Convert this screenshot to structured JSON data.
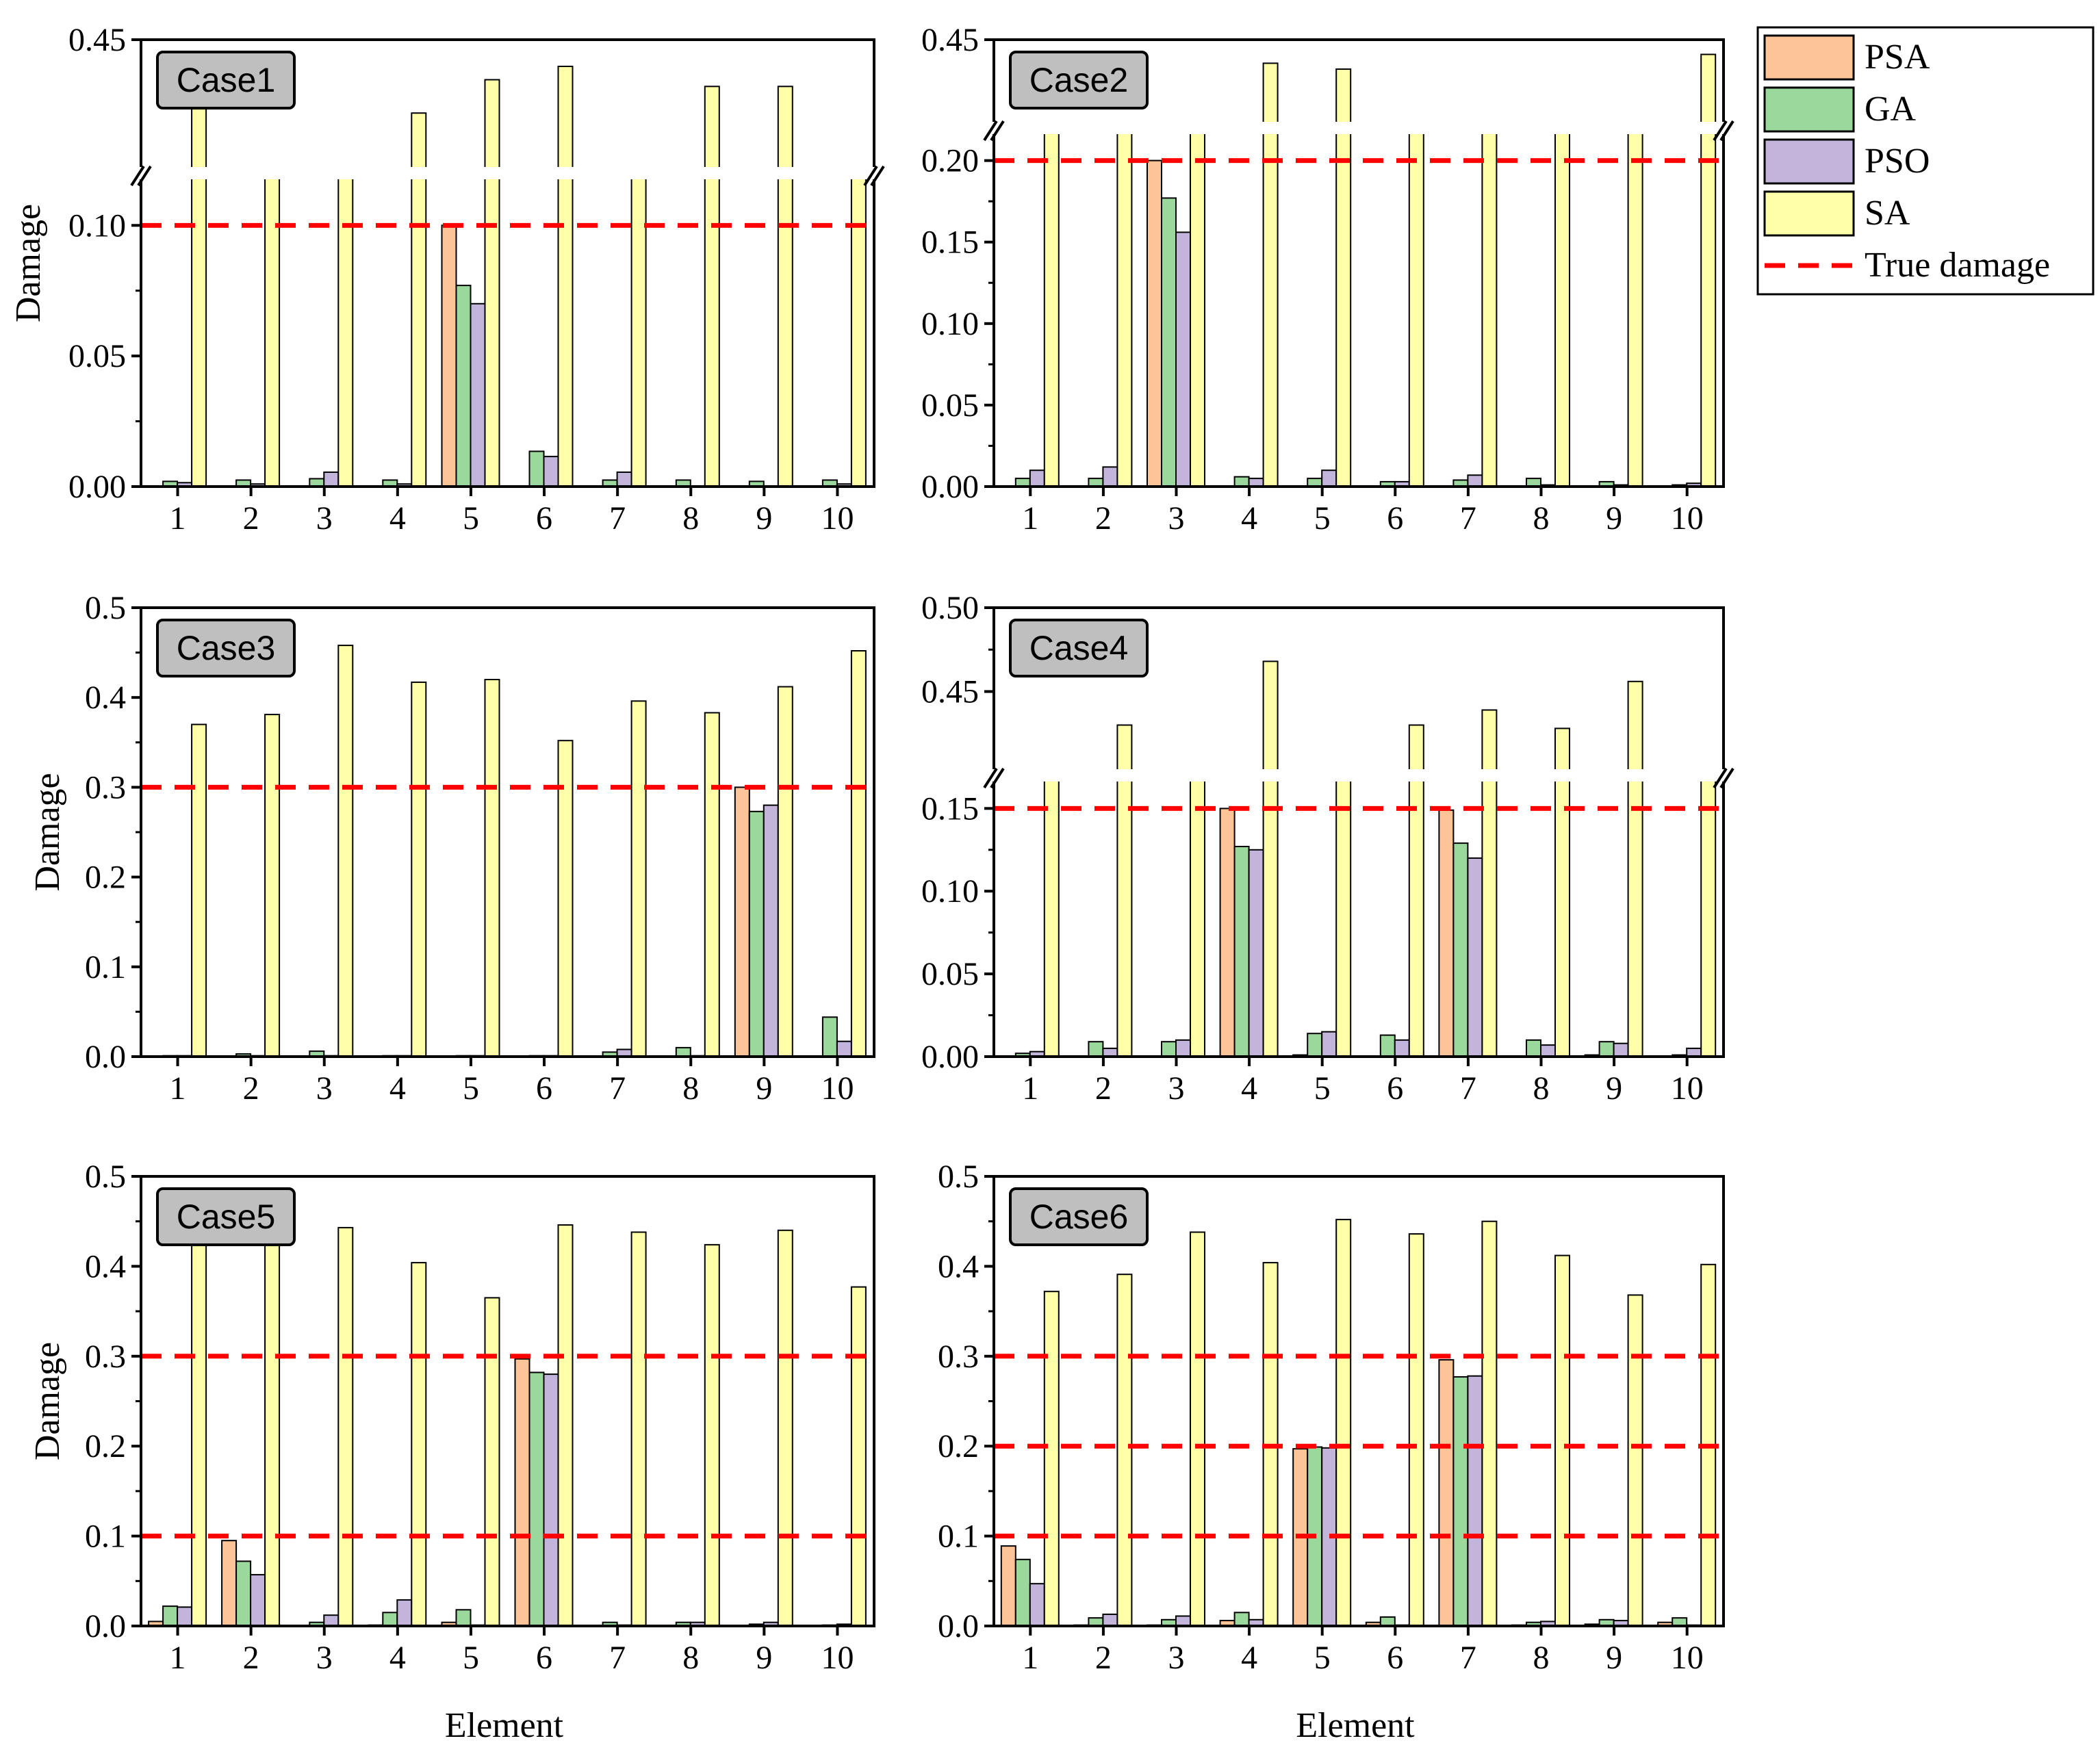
{
  "chart_data": {
    "type": "bar",
    "layout": "3 rows x 2 columns of panels",
    "categories": [
      "1",
      "2",
      "3",
      "4",
      "5",
      "6",
      "7",
      "8",
      "9",
      "10"
    ],
    "xlabel": "Element",
    "ylabel": "Damage",
    "legend": {
      "position": "top-right",
      "entries": [
        {
          "name": "PSA",
          "kind": "bar",
          "color": "#FDC497"
        },
        {
          "name": "GA",
          "kind": "bar",
          "color": "#9BD89B"
        },
        {
          "name": "PSO",
          "kind": "bar",
          "color": "#C2B4DA"
        },
        {
          "name": "SA",
          "kind": "bar",
          "color": "#FFFFAA"
        },
        {
          "name": "True damage",
          "kind": "dashed-line",
          "color": "#FF0000"
        }
      ]
    },
    "panels": [
      {
        "title": "Case1",
        "axis_break": true,
        "ylim_lower": [
          0,
          0.12
        ],
        "ylim_upper": [
          0.25,
          0.45
        ],
        "yticks": [
          {
            "v": 0.0,
            "label": "0.00"
          },
          {
            "v": 0.05,
            "label": "0.05"
          },
          {
            "v": 0.1,
            "label": "0.10"
          },
          {
            "v": 0.45,
            "label": "0.45"
          }
        ],
        "true_damage": [
          0.1
        ],
        "series": [
          {
            "name": "PSA",
            "values": [
              0,
              0,
              0,
              0,
              0.1,
              0,
              0,
              0,
              0,
              0
            ]
          },
          {
            "name": "GA",
            "values": [
              0.002,
              0.0025,
              0.003,
              0.0025,
              0.077,
              0.0135,
              0.0025,
              0.0025,
              0.002,
              0.0025
            ]
          },
          {
            "name": "PSO",
            "values": [
              0.0015,
              0.001,
              0.0055,
              0.001,
              0.07,
              0.0115,
              0.0055,
              0,
              0,
              0.001
            ]
          },
          {
            "name": "SA",
            "values": [
              0.35,
              0.12,
              0.12,
              0.34,
              0.39,
              0.41,
              0.12,
              0.38,
              0.38,
              0.12
            ]
          }
        ]
      },
      {
        "title": "Case2",
        "axis_break": true,
        "ylim_lower": [
          0,
          0.22
        ],
        "ylim_upper": [
          0.3,
          0.45
        ],
        "yticks": [
          {
            "v": 0.0,
            "label": "0.00"
          },
          {
            "v": 0.05,
            "label": "0.05"
          },
          {
            "v": 0.1,
            "label": "0.10"
          },
          {
            "v": 0.15,
            "label": "0.15"
          },
          {
            "v": 0.2,
            "label": "0.20"
          },
          {
            "v": 0.45,
            "label": "0.45"
          }
        ],
        "true_damage": [
          0.2
        ],
        "series": [
          {
            "name": "PSA",
            "values": [
              0,
              0,
              0.2,
              0,
              0,
              0,
              0,
              0,
              0,
              0
            ]
          },
          {
            "name": "GA",
            "values": [
              0.005,
              0.005,
              0.177,
              0.006,
              0.005,
              0.003,
              0.004,
              0.005,
              0.003,
              0.001
            ]
          },
          {
            "name": "PSO",
            "values": [
              0.01,
              0.012,
              0.156,
              0.005,
              0.01,
              0.003,
              0.007,
              0.001,
              0.001,
              0.002
            ]
          },
          {
            "name": "SA",
            "values": [
              0.22,
              0.22,
              0.22,
              0.41,
              0.4,
              0.22,
              0.22,
              0.22,
              0.22,
              0.425
            ]
          }
        ]
      },
      {
        "title": "Case3",
        "axis_break": false,
        "ylim": [
          0,
          0.5
        ],
        "yticks": [
          {
            "v": 0.0,
            "label": "0.0"
          },
          {
            "v": 0.1,
            "label": "0.1"
          },
          {
            "v": 0.2,
            "label": "0.2"
          },
          {
            "v": 0.3,
            "label": "0.3"
          },
          {
            "v": 0.4,
            "label": "0.4"
          },
          {
            "v": 0.5,
            "label": "0.5"
          }
        ],
        "true_damage": [
          0.3
        ],
        "series": [
          {
            "name": "PSA",
            "values": [
              0,
              0,
              0,
              0,
              0,
              0,
              0,
              0,
              0.3,
              0
            ]
          },
          {
            "name": "GA",
            "values": [
              0.001,
              0.003,
              0.006,
              0.001,
              0.001,
              0.001,
              0.005,
              0.01,
              0.273,
              0.044
            ]
          },
          {
            "name": "PSO",
            "values": [
              0.001,
              0.001,
              0.001,
              0.001,
              0.001,
              0.001,
              0.008,
              0.001,
              0.28,
              0.017
            ]
          },
          {
            "name": "SA",
            "values": [
              0.37,
              0.381,
              0.458,
              0.417,
              0.42,
              0.352,
              0.396,
              0.383,
              0.412,
              0.452
            ]
          }
        ]
      },
      {
        "title": "Case4",
        "axis_break": true,
        "ylim_lower": [
          0,
          0.17
        ],
        "ylim_upper": [
          0.4,
          0.5
        ],
        "yticks": [
          {
            "v": 0.0,
            "label": "0.00"
          },
          {
            "v": 0.05,
            "label": "0.05"
          },
          {
            "v": 0.1,
            "label": "0.10"
          },
          {
            "v": 0.15,
            "label": "0.15"
          },
          {
            "v": 0.45,
            "label": "0.45"
          },
          {
            "v": 0.5,
            "label": "0.50"
          }
        ],
        "true_damage": [
          0.15
        ],
        "series": [
          {
            "name": "PSA",
            "values": [
              0,
              0,
              0,
              0.15,
              0.001,
              0,
              0.149,
              0,
              0.001,
              0
            ]
          },
          {
            "name": "GA",
            "values": [
              0.002,
              0.009,
              0.009,
              0.127,
              0.014,
              0.013,
              0.129,
              0.01,
              0.009,
              0.001
            ]
          },
          {
            "name": "PSO",
            "values": [
              0.003,
              0.005,
              0.01,
              0.125,
              0.015,
              0.01,
              0.12,
              0.007,
              0.008,
              0.005
            ]
          },
          {
            "name": "SA",
            "values": [
              0.17,
              0.43,
              0.17,
              0.468,
              0.17,
              0.43,
              0.439,
              0.428,
              0.456,
              0.17
            ]
          }
        ]
      },
      {
        "title": "Case5",
        "axis_break": false,
        "ylim": [
          0,
          0.5
        ],
        "yticks": [
          {
            "v": 0.0,
            "label": "0.0"
          },
          {
            "v": 0.1,
            "label": "0.1"
          },
          {
            "v": 0.2,
            "label": "0.2"
          },
          {
            "v": 0.3,
            "label": "0.3"
          },
          {
            "v": 0.4,
            "label": "0.4"
          },
          {
            "v": 0.5,
            "label": "0.5"
          }
        ],
        "true_damage": [
          0.1,
          0.3
        ],
        "series": [
          {
            "name": "PSA",
            "values": [
              0.005,
              0.095,
              0.0,
              0.001,
              0.004,
              0.297,
              0,
              0,
              0,
              0
            ]
          },
          {
            "name": "GA",
            "values": [
              0.022,
              0.072,
              0.004,
              0.015,
              0.018,
              0.282,
              0.004,
              0.004,
              0.002,
              0.001
            ]
          },
          {
            "name": "PSO",
            "values": [
              0.021,
              0.057,
              0.012,
              0.029,
              0.001,
              0.28,
              0.001,
              0.004,
              0.004,
              0.002
            ]
          },
          {
            "name": "SA",
            "values": [
              0.43,
              0.43,
              0.443,
              0.404,
              0.365,
              0.446,
              0.438,
              0.424,
              0.44,
              0.377
            ]
          }
        ]
      },
      {
        "title": "Case6",
        "axis_break": false,
        "ylim": [
          0,
          0.5
        ],
        "yticks": [
          {
            "v": 0.0,
            "label": "0.0"
          },
          {
            "v": 0.1,
            "label": "0.1"
          },
          {
            "v": 0.2,
            "label": "0.2"
          },
          {
            "v": 0.3,
            "label": "0.3"
          },
          {
            "v": 0.4,
            "label": "0.4"
          },
          {
            "v": 0.5,
            "label": "0.5"
          }
        ],
        "true_damage": [
          0.1,
          0.2,
          0.3
        ],
        "series": [
          {
            "name": "PSA",
            "values": [
              0.089,
              0.001,
              0.001,
              0.006,
              0.197,
              0.004,
              0.296,
              0.001,
              0.002,
              0.004
            ]
          },
          {
            "name": "GA",
            "values": [
              0.074,
              0.009,
              0.007,
              0.015,
              0.199,
              0.01,
              0.277,
              0.004,
              0.007,
              0.009
            ]
          },
          {
            "name": "PSO",
            "values": [
              0.047,
              0.013,
              0.011,
              0.007,
              0.198,
              0.001,
              0.278,
              0.005,
              0.006,
              0.001
            ]
          },
          {
            "name": "SA",
            "values": [
              0.372,
              0.391,
              0.438,
              0.404,
              0.452,
              0.436,
              0.45,
              0.412,
              0.368,
              0.402
            ]
          }
        ]
      }
    ]
  }
}
